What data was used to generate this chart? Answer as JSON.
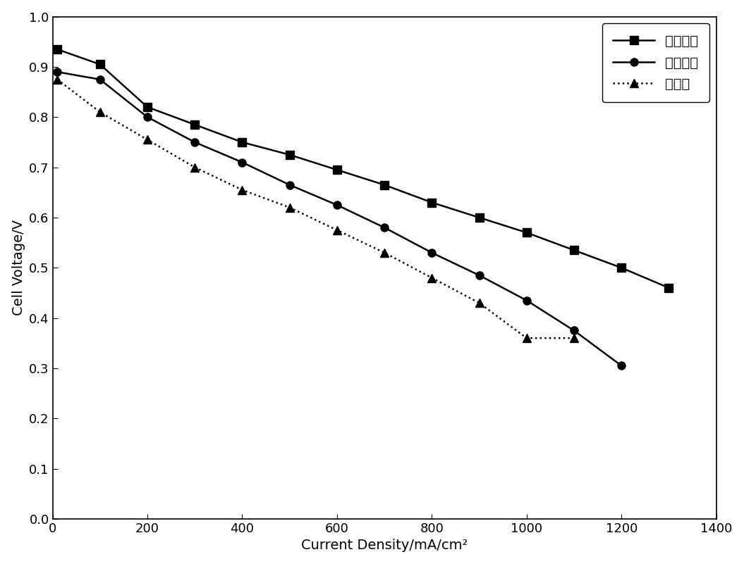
{
  "series1_label": "增湿条件",
  "series2_label": "阳极增湿",
  "series3_label": "不增湿",
  "series1_x": [
    10,
    100,
    200,
    300,
    400,
    500,
    600,
    700,
    800,
    900,
    1000,
    1100,
    1200,
    1300
  ],
  "series1_y": [
    0.935,
    0.905,
    0.82,
    0.785,
    0.75,
    0.725,
    0.695,
    0.665,
    0.63,
    0.6,
    0.57,
    0.535,
    0.5,
    0.46
  ],
  "series2_x": [
    10,
    100,
    200,
    300,
    400,
    500,
    600,
    700,
    800,
    900,
    1000,
    1100,
    1200
  ],
  "series2_y": [
    0.89,
    0.875,
    0.8,
    0.75,
    0.71,
    0.665,
    0.625,
    0.58,
    0.53,
    0.485,
    0.435,
    0.375,
    0.305
  ],
  "series3_x": [
    10,
    100,
    200,
    300,
    400,
    500,
    600,
    700,
    800,
    900,
    1000,
    1100
  ],
  "series3_y": [
    0.875,
    0.81,
    0.755,
    0.7,
    0.655,
    0.62,
    0.575,
    0.53,
    0.48,
    0.43,
    0.36,
    0.36
  ],
  "xlabel": "Current Density/mA/cm²",
  "ylabel": "Cell Voltage/V",
  "xlim": [
    0,
    1400
  ],
  "ylim": [
    0.0,
    1.0
  ],
  "xticks": [
    0,
    200,
    400,
    600,
    800,
    1000,
    1200,
    1400
  ],
  "yticks": [
    0.0,
    0.1,
    0.2,
    0.3,
    0.4,
    0.5,
    0.6,
    0.7,
    0.8,
    0.9,
    1.0
  ],
  "line_color": "#000000",
  "background_color": "#ffffff",
  "axis_fontsize": 14,
  "tick_fontsize": 13,
  "legend_fontsize": 14,
  "linewidth": 1.8,
  "markersize": 8
}
